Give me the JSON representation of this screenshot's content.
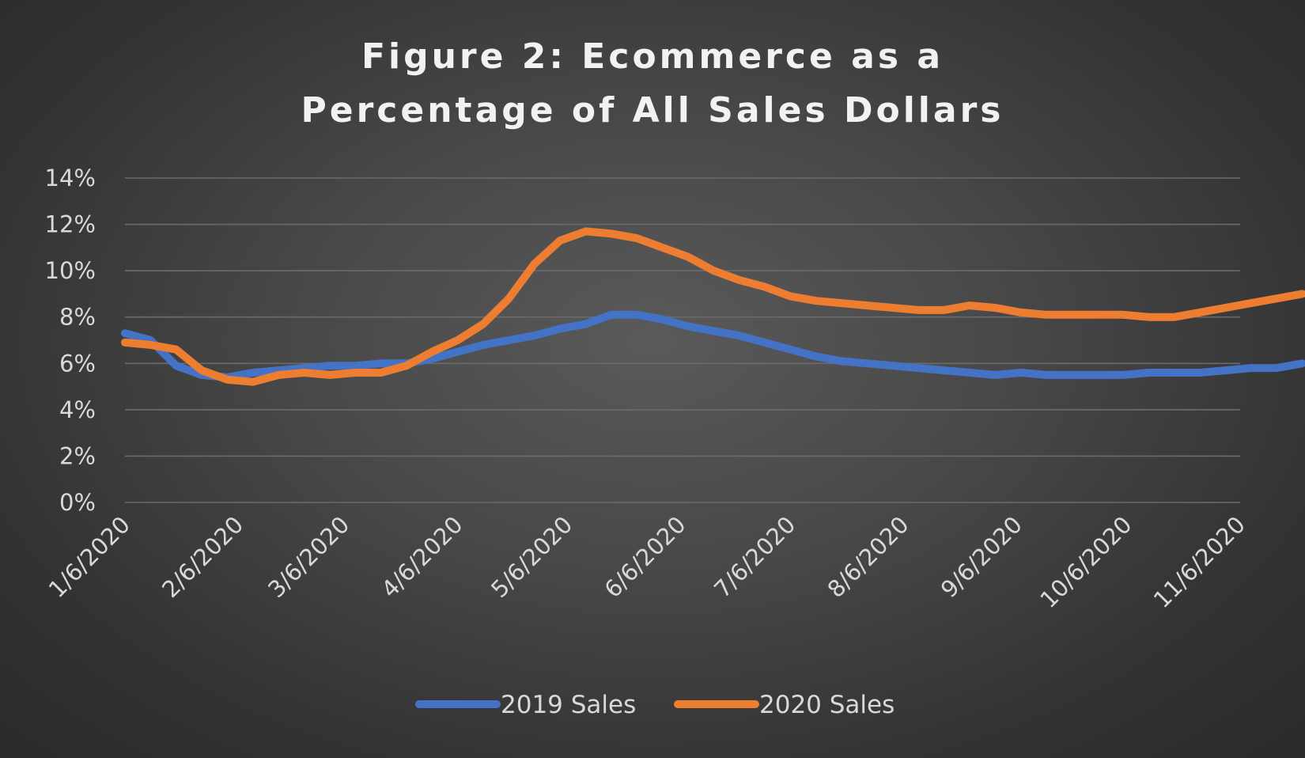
{
  "chart_data": {
    "type": "line",
    "title_lines": [
      "Figure 2: Ecommerce as a",
      "Percentage of All Sales Dollars"
    ],
    "xlabel": "",
    "ylabel": "",
    "ylim": [
      0,
      0.14
    ],
    "yticks": [
      {
        "value": 0,
        "label": "0%"
      },
      {
        "value": 0.02,
        "label": "2%"
      },
      {
        "value": 0.04,
        "label": "4%"
      },
      {
        "value": 0.06,
        "label": "6%"
      },
      {
        "value": 0.08,
        "label": "8%"
      },
      {
        "value": 0.1,
        "label": "10%"
      },
      {
        "value": 0.12,
        "label": "12%"
      },
      {
        "value": 0.14,
        "label": "14%"
      }
    ],
    "xticks": [
      "1/6/2020",
      "2/6/2020",
      "3/6/2020",
      "4/6/2020",
      "5/6/2020",
      "6/6/2020",
      "7/6/2020",
      "8/6/2020",
      "9/6/2020",
      "10/6/2020",
      "11/6/2020"
    ],
    "x_start": "1/6/2020",
    "x_end": "11/6/2020",
    "grid": true,
    "legend_position": "bottom",
    "series": [
      {
        "name": "2019 Sales",
        "color": "#4472C4",
        "points": [
          [
            "1/6/2020",
            0.073
          ],
          [
            "1/13/2020",
            0.07
          ],
          [
            "1/20/2020",
            0.059
          ],
          [
            "1/27/2020",
            0.055
          ],
          [
            "2/3/2020",
            0.054
          ],
          [
            "2/10/2020",
            0.056
          ],
          [
            "2/17/2020",
            0.057
          ],
          [
            "2/24/2020",
            0.058
          ],
          [
            "3/2/2020",
            0.059
          ],
          [
            "3/9/2020",
            0.059
          ],
          [
            "3/16/2020",
            0.06
          ],
          [
            "3/23/2020",
            0.06
          ],
          [
            "3/30/2020",
            0.062
          ],
          [
            "4/6/2020",
            0.065
          ],
          [
            "4/13/2020",
            0.068
          ],
          [
            "4/20/2020",
            0.07
          ],
          [
            "4/27/2020",
            0.072
          ],
          [
            "5/4/2020",
            0.075
          ],
          [
            "5/11/2020",
            0.077
          ],
          [
            "5/18/2020",
            0.081
          ],
          [
            "5/25/2020",
            0.081
          ],
          [
            "6/1/2020",
            0.079
          ],
          [
            "6/8/2020",
            0.076
          ],
          [
            "6/15/2020",
            0.074
          ],
          [
            "6/22/2020",
            0.072
          ],
          [
            "6/29/2020",
            0.069
          ],
          [
            "7/6/2020",
            0.066
          ],
          [
            "7/13/2020",
            0.063
          ],
          [
            "7/20/2020",
            0.061
          ],
          [
            "7/27/2020",
            0.06
          ],
          [
            "8/3/2020",
            0.059
          ],
          [
            "8/10/2020",
            0.058
          ],
          [
            "8/17/2020",
            0.057
          ],
          [
            "8/24/2020",
            0.056
          ],
          [
            "8/31/2020",
            0.055
          ],
          [
            "9/7/2020",
            0.056
          ],
          [
            "9/14/2020",
            0.055
          ],
          [
            "9/21/2020",
            0.055
          ],
          [
            "9/28/2020",
            0.055
          ],
          [
            "10/5/2020",
            0.055
          ],
          [
            "10/12/2020",
            0.056
          ],
          [
            "10/19/2020",
            0.056
          ],
          [
            "10/26/2020",
            0.056
          ],
          [
            "11/2/2020",
            0.057
          ],
          [
            "11/9/2020",
            0.058
          ],
          [
            "11/16/2020",
            0.058
          ],
          [
            "11/23/2020",
            0.06
          ]
        ]
      },
      {
        "name": "2020 Sales",
        "color": "#ED7D31",
        "points": [
          [
            "1/6/2020",
            0.069
          ],
          [
            "1/13/2020",
            0.068
          ],
          [
            "1/20/2020",
            0.066
          ],
          [
            "1/27/2020",
            0.057
          ],
          [
            "2/3/2020",
            0.053
          ],
          [
            "2/10/2020",
            0.052
          ],
          [
            "2/17/2020",
            0.055
          ],
          [
            "2/24/2020",
            0.056
          ],
          [
            "3/2/2020",
            0.055
          ],
          [
            "3/9/2020",
            0.056
          ],
          [
            "3/16/2020",
            0.056
          ],
          [
            "3/23/2020",
            0.059
          ],
          [
            "3/30/2020",
            0.065
          ],
          [
            "4/6/2020",
            0.07
          ],
          [
            "4/13/2020",
            0.077
          ],
          [
            "4/20/2020",
            0.088
          ],
          [
            "4/27/2020",
            0.103
          ],
          [
            "5/4/2020",
            0.113
          ],
          [
            "5/11/2020",
            0.117
          ],
          [
            "5/18/2020",
            0.116
          ],
          [
            "5/25/2020",
            0.114
          ],
          [
            "6/1/2020",
            0.11
          ],
          [
            "6/8/2020",
            0.106
          ],
          [
            "6/15/2020",
            0.1
          ],
          [
            "6/22/2020",
            0.096
          ],
          [
            "6/29/2020",
            0.093
          ],
          [
            "7/6/2020",
            0.089
          ],
          [
            "7/13/2020",
            0.087
          ],
          [
            "7/20/2020",
            0.086
          ],
          [
            "7/27/2020",
            0.085
          ],
          [
            "8/3/2020",
            0.084
          ],
          [
            "8/10/2020",
            0.083
          ],
          [
            "8/17/2020",
            0.083
          ],
          [
            "8/24/2020",
            0.085
          ],
          [
            "8/31/2020",
            0.084
          ],
          [
            "9/7/2020",
            0.082
          ],
          [
            "9/14/2020",
            0.081
          ],
          [
            "9/21/2020",
            0.081
          ],
          [
            "9/28/2020",
            0.081
          ],
          [
            "10/5/2020",
            0.081
          ],
          [
            "10/12/2020",
            0.08
          ],
          [
            "10/19/2020",
            0.08
          ],
          [
            "10/26/2020",
            0.082
          ],
          [
            "11/2/2020",
            0.084
          ],
          [
            "11/9/2020",
            0.086
          ],
          [
            "11/16/2020",
            0.088
          ],
          [
            "11/23/2020",
            0.09
          ]
        ]
      }
    ]
  }
}
